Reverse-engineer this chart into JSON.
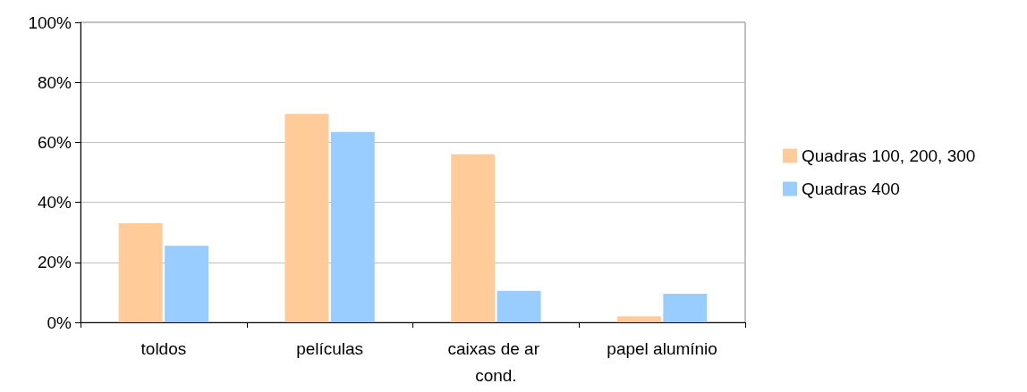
{
  "chart_data": {
    "type": "bar",
    "categories": [
      "toldos",
      "películas",
      "caixas de ar cond.",
      "papel alumínio"
    ],
    "series": [
      {
        "name": "Quadras 100, 200, 300",
        "color": "#ffcc99",
        "values": [
          33,
          69.5,
          56,
          2
        ]
      },
      {
        "name": "Quadras 400",
        "color": "#99ccff",
        "values": [
          25.5,
          63.5,
          10.5,
          9.5
        ]
      }
    ],
    "ylim": [
      0,
      100
    ],
    "yticks": [
      {
        "value": 0,
        "label": "0%"
      },
      {
        "value": 20,
        "label": "20%"
      },
      {
        "value": 40,
        "label": "40%"
      },
      {
        "value": 60,
        "label": "60%"
      },
      {
        "value": 80,
        "label": "80%"
      },
      {
        "value": 100,
        "label": "100%"
      }
    ],
    "grid": "y",
    "legend": "right"
  }
}
